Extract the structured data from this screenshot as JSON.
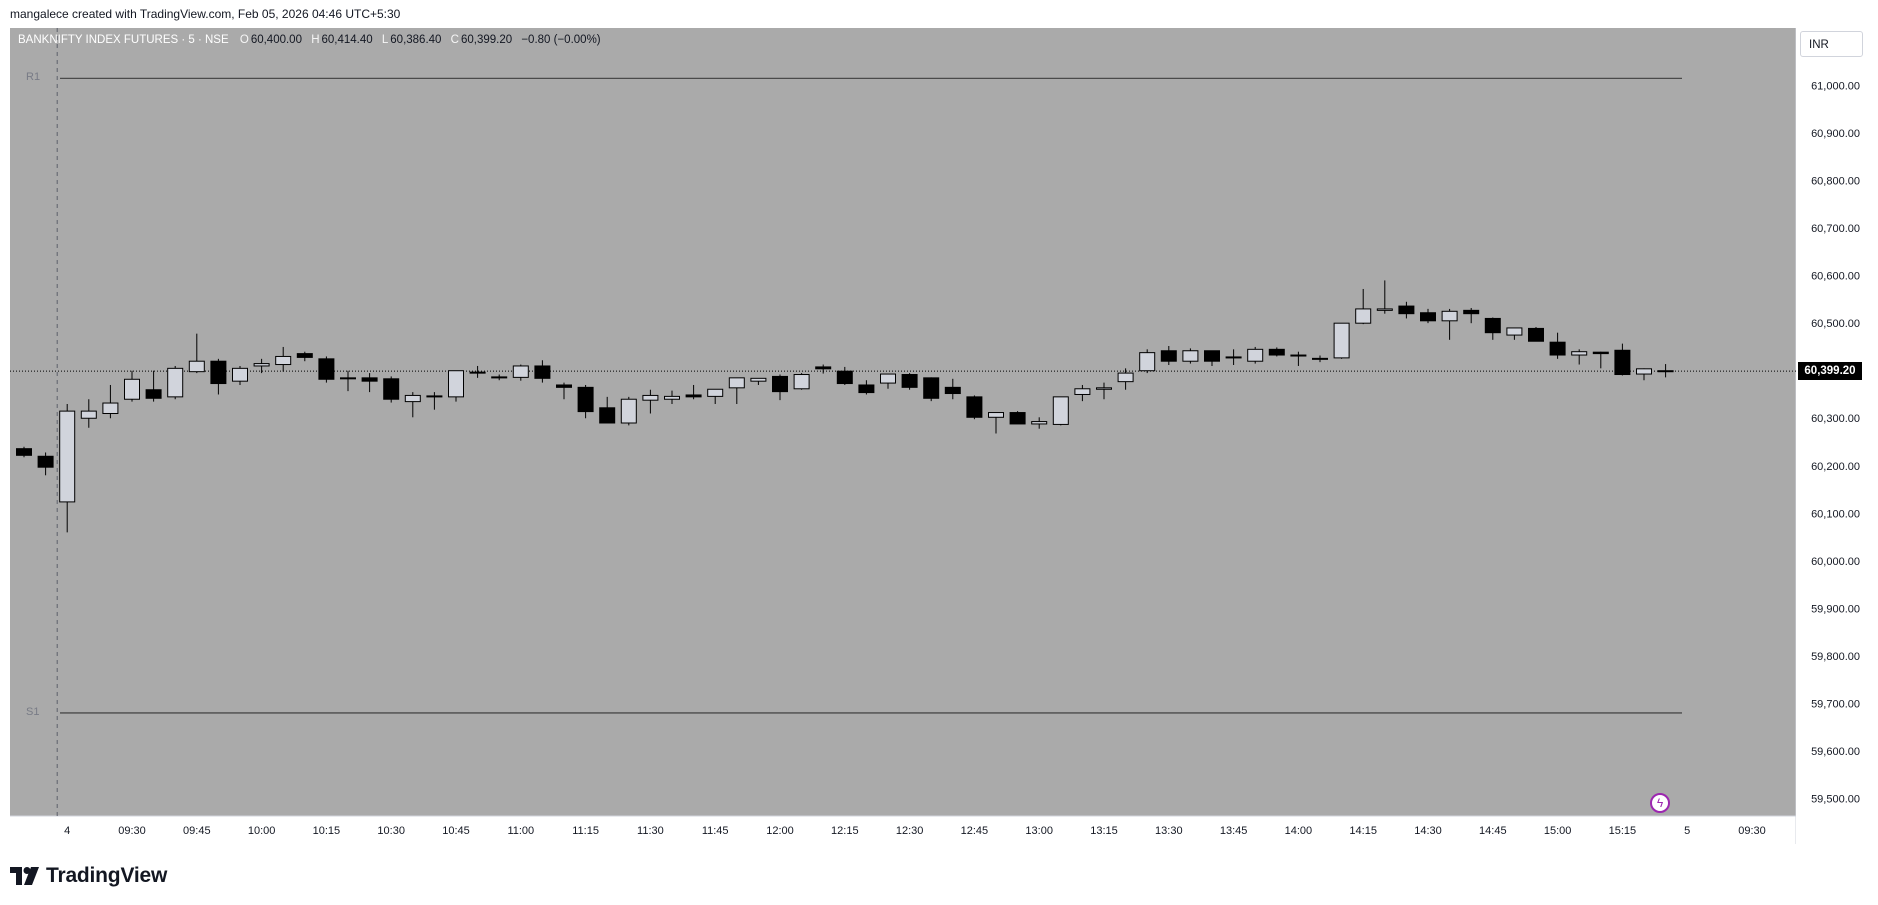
{
  "caption": "mangalece created with TradingView.com, Feb 05, 2026 04:46 UTC+5:30",
  "legend": {
    "symbol": "BANKNIFTY INDEX FUTURES · 5 · NSE",
    "o_label": "O",
    "o_value": "60,400.00",
    "h_label": "H",
    "h_value": "60,414.40",
    "l_label": "L",
    "l_value": "60,386.40",
    "c_label": "C",
    "c_value": "60,399.20",
    "change": "−0.80 (−0.00%)"
  },
  "currency": "INR",
  "current_price_label": "60,399.20",
  "pivots": {
    "r1_label": "R1",
    "s1_label": "S1"
  },
  "brand": "TradingView",
  "colors": {
    "plot_bg": "#aaaaaa",
    "up_candle": "#d1d4dc",
    "down_candle": "#000000",
    "pivot_line": "#4a4a4a",
    "accent": "#9c27b0"
  },
  "chart_data": {
    "type": "candlestick",
    "title": "BANKNIFTY INDEX FUTURES · 5 · NSE",
    "ylim": [
      59480,
      61100
    ],
    "yticks": [
      59500,
      59600,
      59700,
      59800,
      59900,
      60000,
      60100,
      60200,
      60300,
      60400,
      60500,
      60600,
      60700,
      60800,
      60900,
      61000
    ],
    "ytick_labels": [
      "59,500.00",
      "59,600.00",
      "59,700.00",
      "59,800.00",
      "59,900.00",
      "60,000.00",
      "60,100.00",
      "60,200.00",
      "60,300.00",
      "60,400.00",
      "60,500.00",
      "60,600.00",
      "60,700.00",
      "60,800.00",
      "60,900.00",
      "61,000.00"
    ],
    "xtick_labels": [
      "4",
      "09:30",
      "09:45",
      "10:00",
      "10:15",
      "10:30",
      "10:45",
      "11:00",
      "11:15",
      "11:30",
      "11:45",
      "12:00",
      "12:15",
      "12:30",
      "12:45",
      "13:00",
      "13:15",
      "13:30",
      "13:45",
      "14:00",
      "14:15",
      "14:30",
      "14:45",
      "15:00",
      "15:15",
      "5",
      "09:30"
    ],
    "xtick_bar_index": [
      2,
      5,
      8,
      11,
      14,
      17,
      20,
      23,
      26,
      29,
      32,
      35,
      38,
      41,
      44,
      47,
      50,
      53,
      56,
      59,
      62,
      65,
      68,
      71,
      74,
      77,
      80
    ],
    "pivots": {
      "R1": 61015,
      "S1": 59680
    },
    "last_price": 60399.2,
    "candles": [
      {
        "o": 60236,
        "h": 60240,
        "l": 60218,
        "c": 60222
      },
      {
        "o": 60220,
        "h": 60228,
        "l": 60180,
        "c": 60197
      },
      {
        "o": 60124,
        "h": 60330,
        "l": 60060,
        "c": 60315
      },
      {
        "o": 60300,
        "h": 60340,
        "l": 60280,
        "c": 60315
      },
      {
        "o": 60310,
        "h": 60370,
        "l": 60300,
        "c": 60332
      },
      {
        "o": 60340,
        "h": 60400,
        "l": 60335,
        "c": 60382
      },
      {
        "o": 60360,
        "h": 60400,
        "l": 60335,
        "c": 60342
      },
      {
        "o": 60345,
        "h": 60410,
        "l": 60340,
        "c": 60405
      },
      {
        "o": 60398,
        "h": 60478,
        "l": 60395,
        "c": 60420
      },
      {
        "o": 60420,
        "h": 60425,
        "l": 60350,
        "c": 60373
      },
      {
        "o": 60378,
        "h": 60410,
        "l": 60370,
        "c": 60405
      },
      {
        "o": 60410,
        "h": 60425,
        "l": 60395,
        "c": 60415
      },
      {
        "o": 60413,
        "h": 60450,
        "l": 60398,
        "c": 60430
      },
      {
        "o": 60436,
        "h": 60440,
        "l": 60420,
        "c": 60428
      },
      {
        "o": 60425,
        "h": 60430,
        "l": 60375,
        "c": 60382
      },
      {
        "o": 60385,
        "h": 60400,
        "l": 60357,
        "c": 60385
      },
      {
        "o": 60385,
        "h": 60395,
        "l": 60355,
        "c": 60378
      },
      {
        "o": 60383,
        "h": 60388,
        "l": 60333,
        "c": 60340
      },
      {
        "o": 60335,
        "h": 60355,
        "l": 60302,
        "c": 60348
      },
      {
        "o": 60347,
        "h": 60355,
        "l": 60318,
        "c": 60347
      },
      {
        "o": 60345,
        "h": 60400,
        "l": 60335,
        "c": 60400
      },
      {
        "o": 60395,
        "h": 60410,
        "l": 60385,
        "c": 60397
      },
      {
        "o": 60387,
        "h": 60392,
        "l": 60380,
        "c": 60385
      },
      {
        "o": 60386,
        "h": 60413,
        "l": 60379,
        "c": 60410
      },
      {
        "o": 60410,
        "h": 60422,
        "l": 60375,
        "c": 60384
      },
      {
        "o": 60370,
        "h": 60375,
        "l": 60340,
        "c": 60365
      },
      {
        "o": 60365,
        "h": 60370,
        "l": 60300,
        "c": 60314
      },
      {
        "o": 60322,
        "h": 60345,
        "l": 60290,
        "c": 60290
      },
      {
        "o": 60290,
        "h": 60345,
        "l": 60285,
        "c": 60340
      },
      {
        "o": 60338,
        "h": 60360,
        "l": 60310,
        "c": 60348
      },
      {
        "o": 60340,
        "h": 60358,
        "l": 60330,
        "c": 60346
      },
      {
        "o": 60349,
        "h": 60370,
        "l": 60340,
        "c": 60345
      },
      {
        "o": 60346,
        "h": 60360,
        "l": 60330,
        "c": 60361
      },
      {
        "o": 60364,
        "h": 60382,
        "l": 60330,
        "c": 60385
      },
      {
        "o": 60378,
        "h": 60380,
        "l": 60370,
        "c": 60384
      },
      {
        "o": 60388,
        "h": 60392,
        "l": 60338,
        "c": 60356
      },
      {
        "o": 60362,
        "h": 60395,
        "l": 60360,
        "c": 60392
      },
      {
        "o": 60408,
        "h": 60413,
        "l": 60394,
        "c": 60404
      },
      {
        "o": 60399,
        "h": 60408,
        "l": 60370,
        "c": 60373
      },
      {
        "o": 60370,
        "h": 60380,
        "l": 60350,
        "c": 60354
      },
      {
        "o": 60374,
        "h": 60393,
        "l": 60362,
        "c": 60393
      },
      {
        "o": 60392,
        "h": 60395,
        "l": 60360,
        "c": 60365
      },
      {
        "o": 60385,
        "h": 60386,
        "l": 60336,
        "c": 60342
      },
      {
        "o": 60365,
        "h": 60383,
        "l": 60340,
        "c": 60352
      },
      {
        "o": 60345,
        "h": 60348,
        "l": 60298,
        "c": 60302
      },
      {
        "o": 60302,
        "h": 60312,
        "l": 60268,
        "c": 60312
      },
      {
        "o": 60312,
        "h": 60315,
        "l": 60288,
        "c": 60288
      },
      {
        "o": 60288,
        "h": 60302,
        "l": 60278,
        "c": 60293
      },
      {
        "o": 60287,
        "h": 60343,
        "l": 60285,
        "c": 60345
      },
      {
        "o": 60350,
        "h": 60370,
        "l": 60336,
        "c": 60362
      },
      {
        "o": 60361,
        "h": 60375,
        "l": 60340,
        "c": 60364
      },
      {
        "o": 60377,
        "h": 60405,
        "l": 60360,
        "c": 60395
      },
      {
        "o": 60400,
        "h": 60445,
        "l": 60395,
        "c": 60438
      },
      {
        "o": 60442,
        "h": 60452,
        "l": 60412,
        "c": 60420
      },
      {
        "o": 60420,
        "h": 60447,
        "l": 60415,
        "c": 60442
      },
      {
        "o": 60442,
        "h": 60442,
        "l": 60410,
        "c": 60420
      },
      {
        "o": 60428,
        "h": 60445,
        "l": 60412,
        "c": 60429
      },
      {
        "o": 60420,
        "h": 60450,
        "l": 60415,
        "c": 60445
      },
      {
        "o": 60445,
        "h": 60449,
        "l": 60430,
        "c": 60433
      },
      {
        "o": 60432,
        "h": 60440,
        "l": 60410,
        "c": 60433
      },
      {
        "o": 60426,
        "h": 60432,
        "l": 60418,
        "c": 60424
      },
      {
        "o": 60427,
        "h": 60500,
        "l": 60425,
        "c": 60500
      },
      {
        "o": 60500,
        "h": 60572,
        "l": 60498,
        "c": 60530
      },
      {
        "o": 60527,
        "h": 60590,
        "l": 60520,
        "c": 60530
      },
      {
        "o": 60536,
        "h": 60545,
        "l": 60510,
        "c": 60520
      },
      {
        "o": 60522,
        "h": 60530,
        "l": 60500,
        "c": 60505
      },
      {
        "o": 60505,
        "h": 60530,
        "l": 60465,
        "c": 60525
      },
      {
        "o": 60527,
        "h": 60532,
        "l": 60500,
        "c": 60520
      },
      {
        "o": 60510,
        "h": 60512,
        "l": 60465,
        "c": 60480
      },
      {
        "o": 60475,
        "h": 60490,
        "l": 60465,
        "c": 60490
      },
      {
        "o": 60489,
        "h": 60492,
        "l": 60462,
        "c": 60462
      },
      {
        "o": 60460,
        "h": 60480,
        "l": 60425,
        "c": 60433
      },
      {
        "o": 60433,
        "h": 60445,
        "l": 60413,
        "c": 60440
      },
      {
        "o": 60439,
        "h": 60440,
        "l": 60405,
        "c": 60436
      },
      {
        "o": 60443,
        "h": 60457,
        "l": 60390,
        "c": 60392
      },
      {
        "o": 60393,
        "h": 60405,
        "l": 60380,
        "c": 60404
      },
      {
        "o": 60400,
        "h": 60414,
        "l": 60386,
        "c": 60399
      }
    ]
  }
}
